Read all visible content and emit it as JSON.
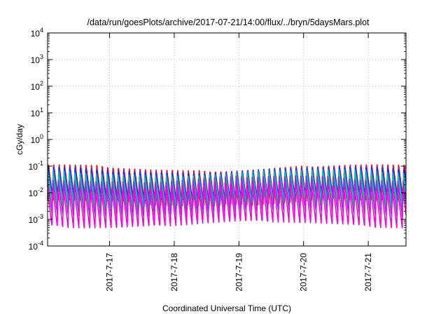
{
  "chart_data": {
    "type": "line",
    "title": "/data/run/goesPlots/archive/2017-07-21/14:00/flux/../bryn/5daysMars.plot",
    "xlabel": "Coordinated Universal Time (UTC)",
    "ylabel": "cGy/day",
    "yscale": "log",
    "ylim": [
      0.0001,
      10000
    ],
    "xlim": [
      "2017-07-16 01:00",
      "2017-07-21 14:00"
    ],
    "x_ticks": [
      "2017-7-17",
      "2017-7-18",
      "2017-7-19",
      "2017-7-20",
      "2017-7-21"
    ],
    "y_ticks": [
      {
        "base": "10",
        "exp": "-4"
      },
      {
        "base": "10",
        "exp": "-3"
      },
      {
        "base": "10",
        "exp": "-2"
      },
      {
        "base": "10",
        "exp": "-1"
      },
      {
        "base": "10",
        "exp": "0"
      },
      {
        "base": "10",
        "exp": "1"
      },
      {
        "base": "10",
        "exp": "2"
      },
      {
        "base": "10",
        "exp": "3"
      },
      {
        "base": "10",
        "exp": "4"
      }
    ],
    "grid": true,
    "legend": "none",
    "sawtooth": {
      "cycles_per_day": 12,
      "note": "each series rises sharply then decays once per cycle"
    },
    "series": [
      {
        "color": "#e8001c",
        "peak_y": 0.09,
        "trough_y": 0.004
      },
      {
        "color": "#1a2fd6",
        "peak_y": 0.075,
        "trough_y": 0.005
      },
      {
        "color": "#1f9be0",
        "peak_y": 0.06,
        "trough_y": 0.0035
      },
      {
        "color": "#2fb5a0",
        "peak_y": 0.05,
        "trough_y": 0.0025
      },
      {
        "color": "#7a3fd0",
        "peak_y": 0.035,
        "trough_y": 0.0015
      },
      {
        "color": "#ff00dd",
        "peak_y": 0.02,
        "trough_y": 0.0006
      }
    ]
  }
}
